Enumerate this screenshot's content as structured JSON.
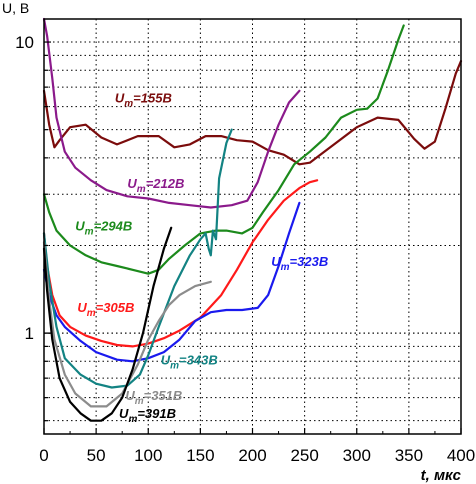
{
  "chart_data": {
    "type": "line",
    "xlabel": "t, мкс",
    "ylabel": "U, B",
    "xlim": [
      0,
      400
    ],
    "ylim": [
      0.45,
      12
    ],
    "yscale": "log",
    "grid": "dotted",
    "xticks": [
      "0",
      "50",
      "100",
      "150",
      "200",
      "250",
      "300",
      "350",
      "400"
    ],
    "yticks": [
      {
        "value": 1,
        "label": "1"
      },
      {
        "value": 10,
        "label": "10"
      }
    ],
    "series": [
      {
        "name": "Um=155B",
        "label": {
          "sym": "U",
          "sub": "m",
          "val": "=155B"
        },
        "color": "#7b0c0c",
        "x": [
          0,
          5,
          10,
          15,
          25,
          40,
          55,
          70,
          90,
          110,
          125,
          140,
          155,
          170,
          185,
          200,
          215,
          230,
          245,
          255,
          265,
          280,
          300,
          320,
          340,
          355,
          365,
          375,
          385,
          395,
          400
        ],
        "y": [
          6.8,
          5.2,
          4.35,
          4.6,
          5.1,
          5.2,
          4.7,
          4.45,
          4.75,
          4.75,
          4.35,
          4.45,
          4.75,
          4.75,
          4.6,
          4.55,
          4.25,
          4.1,
          3.8,
          3.85,
          4.1,
          4.5,
          5.1,
          5.5,
          5.4,
          4.65,
          4.3,
          4.55,
          5.9,
          7.8,
          8.6
        ]
      },
      {
        "name": "Um=212B",
        "label": {
          "sym": "U",
          "sub": "m",
          "val": "=212B"
        },
        "color": "#8b1a8b",
        "x": [
          0,
          3,
          8,
          12,
          20,
          30,
          45,
          60,
          80,
          100,
          120,
          140,
          160,
          180,
          195,
          205,
          215,
          225,
          235,
          245
        ],
        "y": [
          12,
          10.5,
          7.5,
          5.5,
          4.2,
          3.7,
          3.35,
          3.1,
          2.95,
          2.9,
          2.8,
          2.75,
          2.7,
          2.75,
          2.85,
          3.3,
          4.2,
          5.2,
          6.2,
          6.8
        ]
      },
      {
        "name": "Um=294B",
        "label": {
          "sym": "U",
          "sub": "m",
          "val": "=294B"
        },
        "color": "#1c8a1c",
        "x": [
          0,
          5,
          12,
          25,
          40,
          55,
          70,
          85,
          100,
          110,
          120,
          135,
          150,
          165,
          175,
          190,
          200,
          210,
          225,
          240,
          255,
          270,
          285,
          300,
          310,
          320,
          330,
          340,
          345
        ],
        "y": [
          3.0,
          2.6,
          2.25,
          2.0,
          1.85,
          1.75,
          1.7,
          1.65,
          1.6,
          1.65,
          1.8,
          2.0,
          2.2,
          2.25,
          2.25,
          2.2,
          2.3,
          2.6,
          3.1,
          3.8,
          4.2,
          4.7,
          5.5,
          5.85,
          5.9,
          6.4,
          8.0,
          10.2,
          11.4
        ]
      },
      {
        "name": "Um=305B",
        "label": {
          "sym": "U",
          "sub": "m",
          "val": "=305B"
        },
        "color": "#ff1a1a",
        "x": [
          0,
          3,
          8,
          15,
          25,
          40,
          55,
          70,
          85,
          100,
          115,
          130,
          150,
          170,
          185,
          200,
          215,
          230,
          245,
          255,
          262
        ],
        "y": [
          2.2,
          1.7,
          1.35,
          1.15,
          1.05,
          0.98,
          0.94,
          0.91,
          0.9,
          0.92,
          0.96,
          1.02,
          1.13,
          1.35,
          1.65,
          2.05,
          2.45,
          2.85,
          3.15,
          3.3,
          3.35
        ]
      },
      {
        "name": "Um=323B",
        "label": {
          "sym": "U",
          "sub": "m",
          "val": "=323B"
        },
        "color": "#1a1aee",
        "x": [
          0,
          5,
          12,
          20,
          35,
          50,
          70,
          85,
          100,
          115,
          130,
          145,
          160,
          175,
          190,
          205,
          215,
          225,
          235,
          245
        ],
        "y": [
          1.65,
          1.35,
          1.15,
          1.05,
          0.94,
          0.86,
          0.81,
          0.8,
          0.82,
          0.86,
          0.95,
          1.1,
          1.18,
          1.2,
          1.2,
          1.22,
          1.35,
          1.7,
          2.2,
          2.8
        ]
      },
      {
        "name": "Um=343B",
        "label": {
          "sym": "U",
          "sub": "m",
          "val": "=343B"
        },
        "color": "#138383",
        "x": [
          0,
          5,
          12,
          20,
          35,
          50,
          65,
          80,
          92,
          100,
          110,
          125,
          140,
          150,
          155,
          158,
          160,
          162,
          165,
          168,
          175,
          180
        ],
        "y": [
          2.2,
          1.5,
          1.05,
          0.82,
          0.72,
          0.67,
          0.65,
          0.66,
          0.72,
          0.84,
          1.05,
          1.45,
          1.85,
          2.1,
          2.2,
          1.95,
          1.85,
          2.25,
          2.1,
          3.4,
          4.5,
          5.0
        ]
      },
      {
        "name": "Um=351B",
        "label": {
          "sym": "U",
          "sub": "m",
          "val": "=351B"
        },
        "color": "#8c8c8c",
        "x": [
          0,
          5,
          10,
          20,
          30,
          45,
          60,
          75,
          90,
          100,
          110,
          120,
          130,
          145,
          160
        ],
        "y": [
          2.05,
          1.3,
          0.95,
          0.72,
          0.62,
          0.56,
          0.56,
          0.62,
          0.78,
          0.95,
          1.1,
          1.25,
          1.35,
          1.45,
          1.5
        ]
      },
      {
        "name": "Um=391B",
        "label": {
          "sym": "U",
          "sub": "m",
          "val": "=391B"
        },
        "color": "#000000",
        "x": [
          0,
          3,
          8,
          15,
          25,
          35,
          45,
          55,
          65,
          75,
          85,
          95,
          105,
          115,
          122
        ],
        "y": [
          1.95,
          1.4,
          0.95,
          0.7,
          0.58,
          0.53,
          0.5,
          0.5,
          0.53,
          0.6,
          0.75,
          1.0,
          1.45,
          1.95,
          2.3
        ]
      }
    ],
    "annotations": [
      {
        "series": 0,
        "x": 68,
        "y": 6.2,
        "color": "#7b0c0c"
      },
      {
        "series": 1,
        "x": 80,
        "y": 3.15,
        "color": "#8b1a8b"
      },
      {
        "series": 2,
        "x": 30,
        "y": 2.25,
        "color": "#1c8a1c"
      },
      {
        "series": 3,
        "x": 32,
        "y": 1.18,
        "color": "#ff1a1a"
      },
      {
        "series": 4,
        "x": 218,
        "y": 1.7,
        "color": "#1a1aee"
      },
      {
        "series": 5,
        "x": 112,
        "y": 0.78,
        "color": "#138383"
      },
      {
        "series": 6,
        "x": 78,
        "y": 0.59,
        "color": "#8c8c8c"
      },
      {
        "series": 7,
        "x": 72,
        "y": 0.51,
        "color": "#000000"
      }
    ]
  }
}
